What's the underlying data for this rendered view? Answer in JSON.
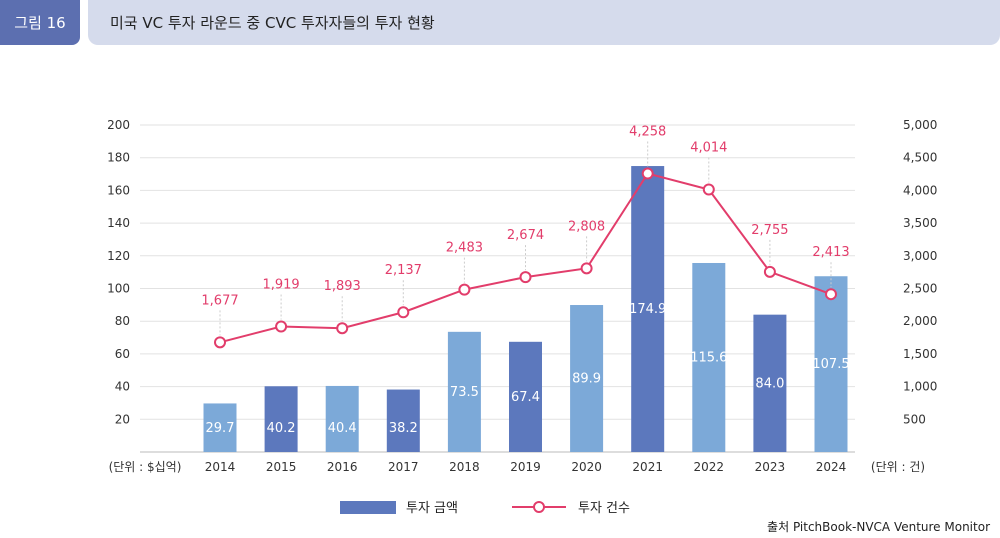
{
  "header": {
    "figure_label": "그림 16",
    "title": "미국 VC 투자 라운드 중 CVC 투자자들의 투자 현황"
  },
  "source": "출처 PitchBook-NVCA Venture Monitor",
  "chart_data": {
    "type": "bar",
    "categories": [
      "2014",
      "2015",
      "2016",
      "2017",
      "2018",
      "2019",
      "2020",
      "2021",
      "2022",
      "2023",
      "2024"
    ],
    "series": [
      {
        "name": "투자 금액",
        "type": "bar",
        "axis": "left",
        "values": [
          29.7,
          40.2,
          40.4,
          38.2,
          73.5,
          67.4,
          89.9,
          174.9,
          115.6,
          84.0,
          107.5
        ],
        "labels": [
          "29.7",
          "40.2",
          "40.4",
          "38.2",
          "73.5",
          "67.4",
          "89.9",
          "174.9",
          "115.6",
          "84.0",
          "107.5"
        ],
        "bar_colors": [
          "#7ca9d8",
          "#5c78bd",
          "#7ca9d8",
          "#5c78bd",
          "#7ca9d8",
          "#5c78bd",
          "#7ca9d8",
          "#5c78bd",
          "#7ca9d8",
          "#5c78bd",
          "#7ca9d8"
        ]
      },
      {
        "name": "투자 건수",
        "type": "line",
        "axis": "right",
        "color": "#e23d6b",
        "values": [
          1677,
          1919,
          1893,
          2137,
          2483,
          2674,
          2808,
          4258,
          4014,
          2755,
          2413
        ],
        "labels": [
          "1,677",
          "1,919",
          "1,893",
          "2,137",
          "2,483",
          "2,674",
          "2,808",
          "4,258",
          "4,014",
          "2,755",
          "2,413"
        ]
      }
    ],
    "left_axis": {
      "unit_label": "(단위 : $십억)",
      "ylim": [
        0,
        200
      ],
      "ticks": [
        20,
        40,
        60,
        80,
        100,
        120,
        140,
        160,
        180,
        200
      ],
      "tick_labels": [
        "20",
        "40",
        "60",
        "80",
        "100",
        "120",
        "140",
        "160",
        "180",
        "200"
      ]
    },
    "right_axis": {
      "unit_label": "(단위 : 건)",
      "ylim": [
        0,
        5000
      ],
      "ticks": [
        500,
        1000,
        1500,
        2000,
        2500,
        3000,
        3500,
        4000,
        4500,
        5000
      ],
      "tick_labels": [
        "500",
        "1,000",
        "1,500",
        "2,000",
        "2,500",
        "3,000",
        "3,500",
        "4,000",
        "4,500",
        "5,000"
      ]
    },
    "grid": true,
    "legend": {
      "position": "bottom",
      "items": [
        {
          "label": "투자 금액",
          "kind": "bar",
          "color": "#5c78bd"
        },
        {
          "label": "투자 건수",
          "kind": "line",
          "color": "#e23d6b"
        }
      ]
    }
  }
}
